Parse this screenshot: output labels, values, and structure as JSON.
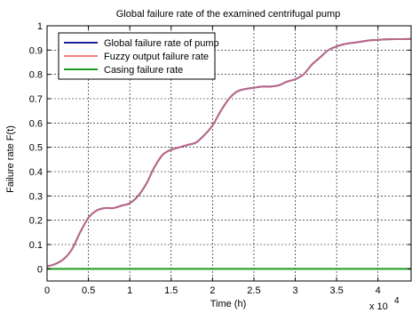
{
  "chart_data": {
    "type": "line",
    "title": "Global failure rate of the examined centrifugal pump",
    "xlabel": "Time (h)",
    "ylabel": "Failure rate F(t)",
    "x_multiplier_label": "x 10",
    "x_multiplier_exp": "4",
    "xlim": [
      0,
      4.4
    ],
    "ylim": [
      -0.05,
      1.0
    ],
    "xticks": [
      "0",
      "0.5",
      "1",
      "1.5",
      "2",
      "2.5",
      "3",
      "3.5",
      "4"
    ],
    "xtick_values": [
      0,
      0.5,
      1,
      1.5,
      2,
      2.5,
      3,
      3.5,
      4
    ],
    "yticks": [
      "0",
      "0.1",
      "0.2",
      "0.3",
      "0.4",
      "0.5",
      "0.6",
      "0.7",
      "0.8",
      "0.9",
      "1"
    ],
    "ytick_values": [
      0,
      0.1,
      0.2,
      0.3,
      0.4,
      0.5,
      0.6,
      0.7,
      0.8,
      0.9,
      1.0
    ],
    "grid": true,
    "legend_position": "top-left",
    "series": [
      {
        "name": "Global failure rate of pump",
        "color": "#1f1f9a",
        "x": [
          0,
          0.1,
          0.2,
          0.3,
          0.4,
          0.5,
          0.6,
          0.7,
          0.8,
          0.9,
          1.0,
          1.1,
          1.2,
          1.3,
          1.4,
          1.5,
          1.6,
          1.7,
          1.8,
          1.9,
          2.0,
          2.1,
          2.2,
          2.3,
          2.4,
          2.5,
          2.6,
          2.7,
          2.8,
          2.9,
          3.0,
          3.1,
          3.2,
          3.3,
          3.4,
          3.5,
          3.6,
          3.7,
          3.8,
          3.9,
          4.0,
          4.1,
          4.2,
          4.3,
          4.4
        ],
        "y": [
          0.01,
          0.02,
          0.04,
          0.08,
          0.15,
          0.21,
          0.24,
          0.25,
          0.25,
          0.26,
          0.27,
          0.3,
          0.35,
          0.42,
          0.47,
          0.49,
          0.5,
          0.51,
          0.52,
          0.55,
          0.59,
          0.65,
          0.7,
          0.73,
          0.74,
          0.745,
          0.75,
          0.75,
          0.755,
          0.77,
          0.78,
          0.8,
          0.84,
          0.87,
          0.9,
          0.915,
          0.925,
          0.93,
          0.935,
          0.94,
          0.942,
          0.944,
          0.945,
          0.945,
          0.946
        ]
      },
      {
        "name": "Fuzzy output failure rate",
        "color": "#f08080",
        "x": [
          0,
          0.1,
          0.2,
          0.3,
          0.4,
          0.5,
          0.6,
          0.7,
          0.8,
          0.9,
          1.0,
          1.1,
          1.2,
          1.3,
          1.4,
          1.5,
          1.6,
          1.7,
          1.8,
          1.9,
          2.0,
          2.1,
          2.2,
          2.3,
          2.4,
          2.5,
          2.6,
          2.7,
          2.8,
          2.9,
          3.0,
          3.1,
          3.2,
          3.3,
          3.4,
          3.5,
          3.6,
          3.7,
          3.8,
          3.9,
          4.0,
          4.1,
          4.2,
          4.3,
          4.4
        ],
        "y": [
          0.01,
          0.02,
          0.04,
          0.08,
          0.15,
          0.21,
          0.24,
          0.25,
          0.25,
          0.26,
          0.27,
          0.3,
          0.35,
          0.42,
          0.47,
          0.49,
          0.5,
          0.51,
          0.52,
          0.55,
          0.59,
          0.65,
          0.7,
          0.73,
          0.74,
          0.745,
          0.75,
          0.75,
          0.755,
          0.77,
          0.78,
          0.8,
          0.84,
          0.87,
          0.9,
          0.915,
          0.925,
          0.93,
          0.935,
          0.94,
          0.942,
          0.944,
          0.945,
          0.945,
          0.946
        ]
      },
      {
        "name": "Casing failure rate",
        "color": "#1e9a1e",
        "x": [
          0,
          4.4
        ],
        "y": [
          0,
          0
        ]
      }
    ]
  }
}
